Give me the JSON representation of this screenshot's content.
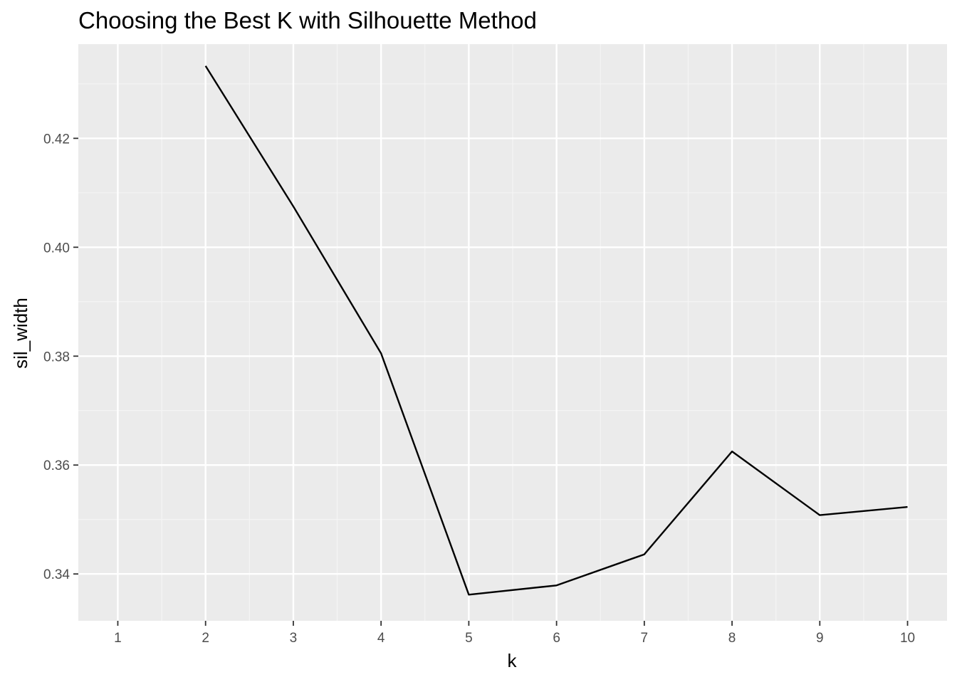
{
  "chart_data": {
    "type": "line",
    "title": "Choosing the Best K with Silhouette Method",
    "xlabel": "k",
    "ylabel": "sil_width",
    "x": [
      1,
      2,
      3,
      4,
      5,
      6,
      7,
      8,
      9,
      10
    ],
    "series": [
      {
        "values": [
          null,
          0.4333,
          0.4075,
          0.3805,
          0.3362,
          0.3379,
          0.3436,
          0.3625,
          0.3508,
          0.3523
        ]
      }
    ],
    "xlim": [
      0.55,
      10.45
    ],
    "ylim": [
      0.3314,
      0.4373
    ],
    "x_ticks": [
      1,
      2,
      3,
      4,
      5,
      6,
      7,
      8,
      9,
      10
    ],
    "y_ticks": [
      0.34,
      0.36,
      0.38,
      0.4,
      0.42
    ],
    "y_tick_labels": [
      "0.34",
      "0.36",
      "0.38",
      "0.40",
      "0.42"
    ],
    "grid": true,
    "legend": "none",
    "colors": {
      "panel_background": "#ebebeb",
      "grid_major": "#ffffff",
      "grid_minor": "#f5f5f5",
      "line": "#000000",
      "tick": "#333333",
      "tick_label": "#4d4d4d"
    }
  }
}
